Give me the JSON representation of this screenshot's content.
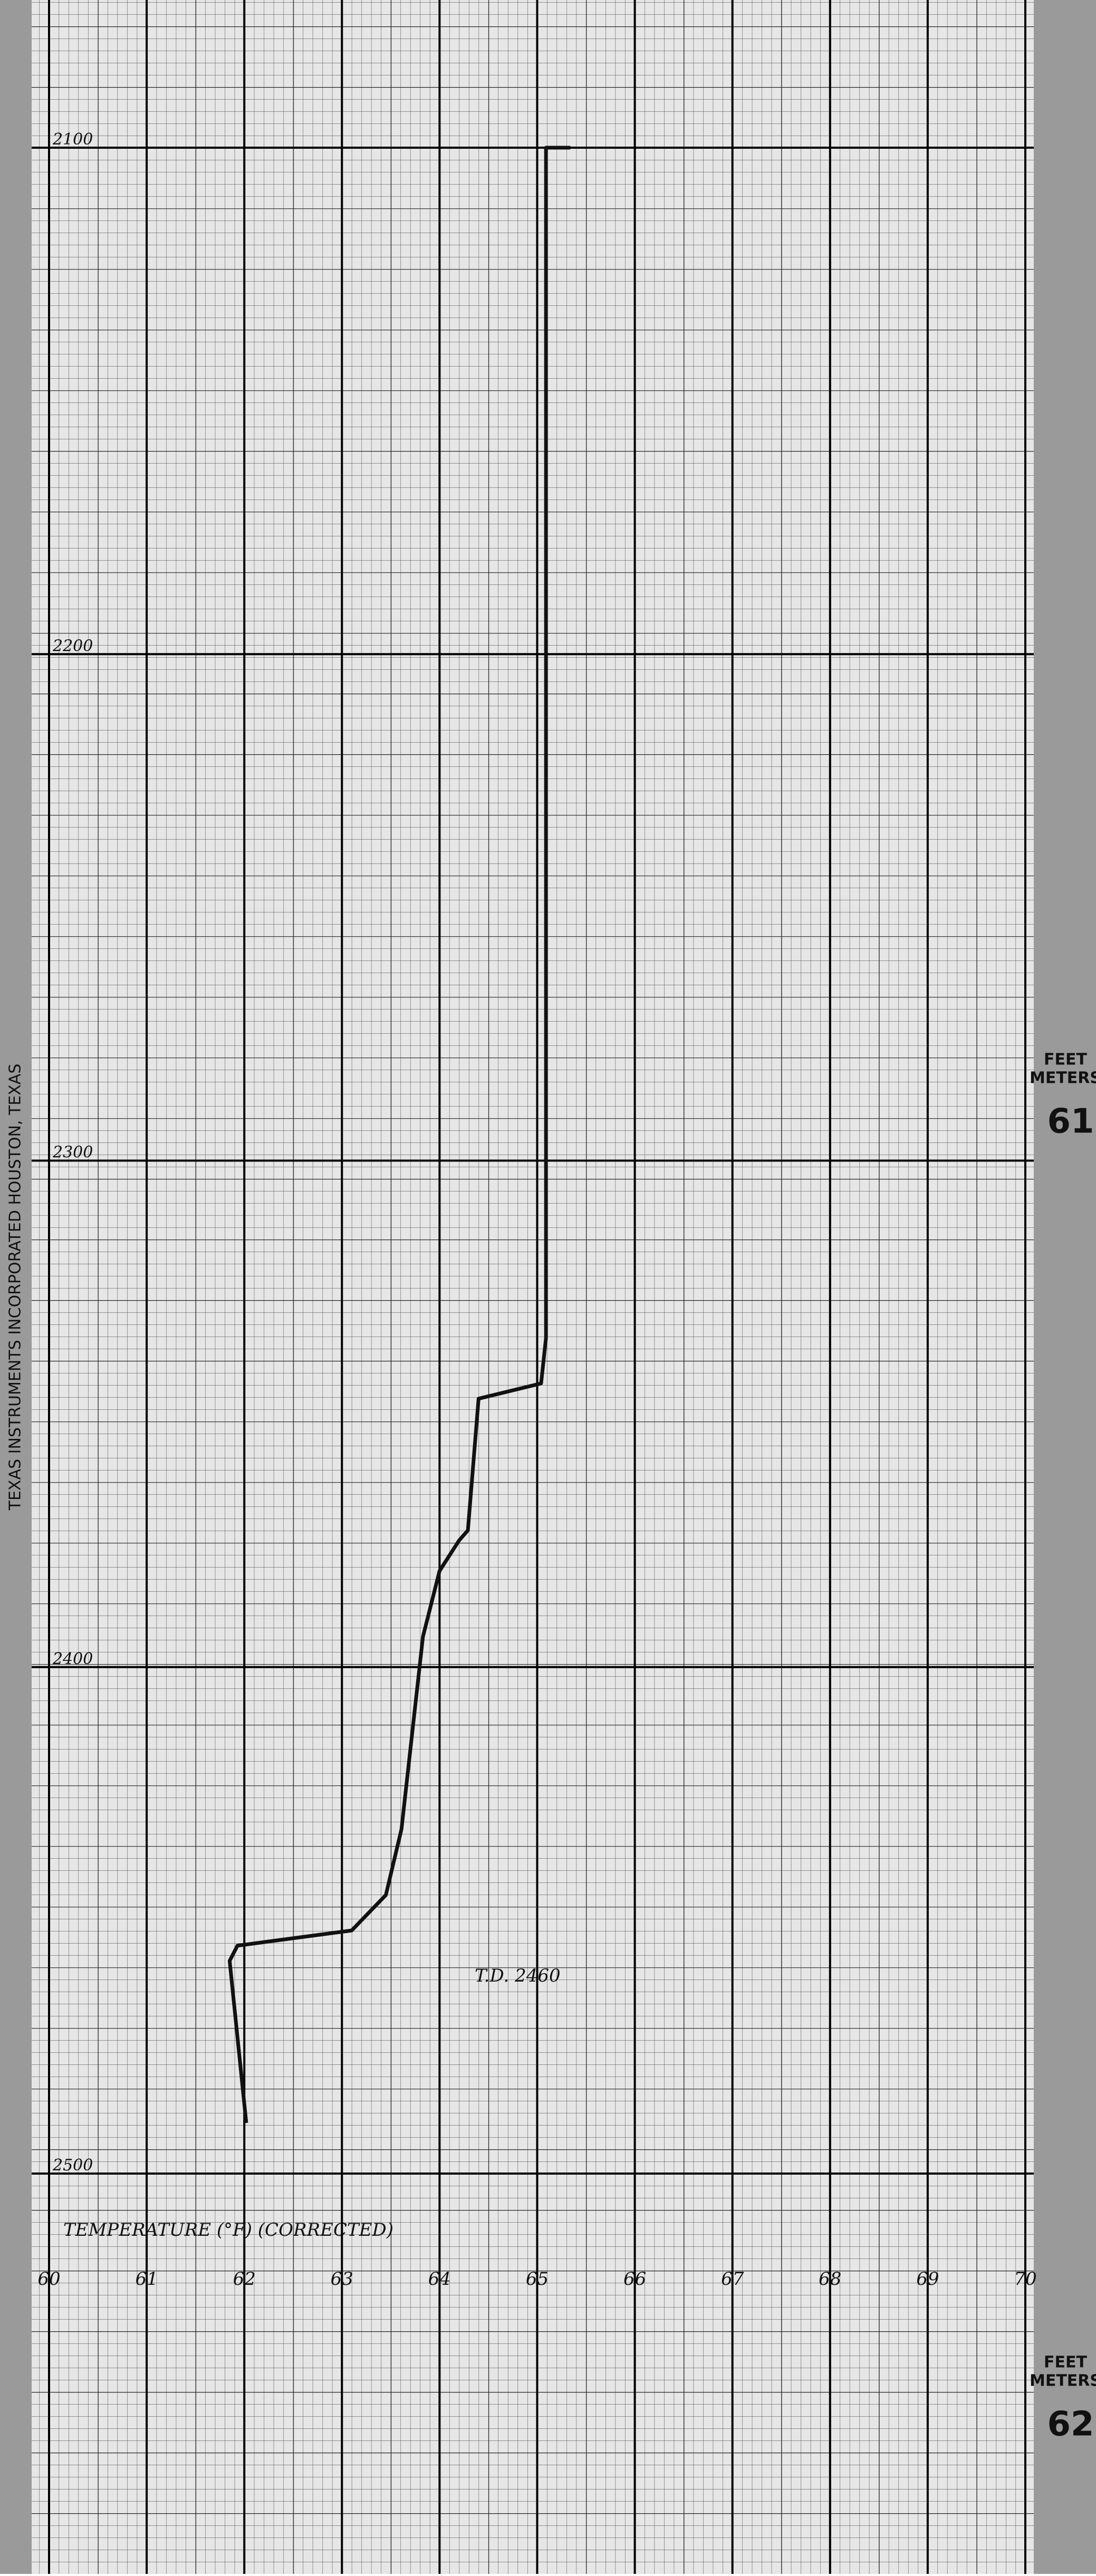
{
  "chart_data": {
    "type": "line",
    "x_label": "TEMPERATURE (°F) (CORRECTED)",
    "annotation": "T.D. 2460",
    "x": [
      65.34,
      65.09,
      65.09,
      65.04,
      64.4,
      64.29,
      64.2,
      64.0,
      63.83,
      63.61,
      63.45,
      63.1,
      61.93,
      61.85,
      62.02
    ],
    "values": [
      2100,
      2100,
      2335,
      2344,
      2347,
      2373,
      2375,
      2381,
      2394,
      2432,
      2445,
      2452,
      2455,
      2458,
      2490
    ],
    "color": "#111111",
    "xlim": [
      60,
      70
    ],
    "xticks": [
      60,
      61,
      62,
      63,
      64,
      65,
      66,
      67,
      68,
      69,
      70
    ],
    "ylim": [
      2500,
      2100
    ],
    "yticks": [
      2100,
      2200,
      2300,
      2400,
      2500
    ],
    "grid": true
  },
  "margin_labels": {
    "left": "TEXAS INSTRUMENTS INCORPORATED HOUSTON, TEXAS",
    "right_units": [
      "FEET",
      "METERS"
    ],
    "right_numbers": [
      "61",
      "62"
    ]
  }
}
